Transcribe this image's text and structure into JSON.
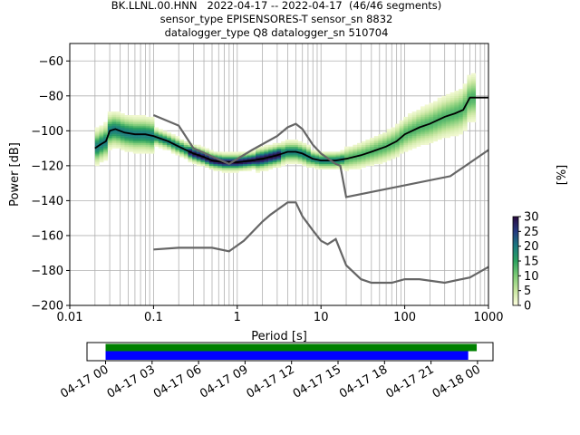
{
  "title_lines": [
    "BK.LLNL.00.HNN   2022-04-17 -- 2022-04-17  (46/46 segments)",
    "sensor_type EPISENSORES-T sensor_sn 8832",
    "datalogger_type Q8 datalogger_sn 510704"
  ],
  "chart_data": [
    {
      "type": "heatmap",
      "title": "BK.LLNL.00.HNN   2022-04-17 -- 2022-04-17  (46/46 segments)",
      "xlabel": "Period [s]",
      "ylabel": "Power [dB]",
      "xscale": "log",
      "xlim": [
        0.01,
        1000
      ],
      "ylim": [
        -200,
        -50
      ],
      "x_ticks": [
        "0.01",
        "0.1",
        "1",
        "10",
        "100",
        "1000"
      ],
      "y_ticks": [
        "−60",
        "−80",
        "−100",
        "−120",
        "−140",
        "−160",
        "−180",
        "−200"
      ],
      "grid": true,
      "colorbar": {
        "label": "[%]",
        "min": 0,
        "max": 30,
        "ticks": [
          "0",
          "5",
          "10",
          "15",
          "20",
          "25",
          "30"
        ],
        "colors": [
          "#ffffe0",
          "#c8e6a0",
          "#7fcc77",
          "#2ca25f",
          "#1a7a80",
          "#253a80",
          "#2a0a40"
        ]
      },
      "series": [
        {
          "name": "",
          "color": "#000000",
          "points": [
            [
              0.02,
              -110
            ],
            [
              0.023,
              -108
            ],
            [
              0.027,
              -106
            ],
            [
              0.03,
              -100
            ],
            [
              0.035,
              -99
            ],
            [
              0.045,
              -101
            ],
            [
              0.06,
              -102
            ],
            [
              0.08,
              -102
            ],
            [
              0.1,
              -103
            ],
            [
              0.15,
              -106
            ],
            [
              0.2,
              -109
            ],
            [
              0.3,
              -113
            ],
            [
              0.4,
              -115
            ],
            [
              0.5,
              -117
            ],
            [
              0.7,
              -118
            ],
            [
              1,
              -118
            ],
            [
              1.5,
              -117
            ],
            [
              2,
              -116
            ],
            [
              3,
              -114
            ],
            [
              4,
              -112
            ],
            [
              5,
              -112
            ],
            [
              6,
              -113
            ],
            [
              8,
              -116
            ],
            [
              10,
              -117
            ],
            [
              15,
              -117
            ],
            [
              20,
              -116
            ],
            [
              30,
              -114
            ],
            [
              40,
              -112
            ],
            [
              60,
              -109
            ],
            [
              80,
              -106
            ],
            [
              100,
              -102
            ],
            [
              150,
              -98
            ],
            [
              200,
              -96
            ],
            [
              300,
              -92
            ],
            [
              400,
              -90
            ],
            [
              500,
              -88
            ],
            [
              600,
              -81
            ],
            [
              1000,
              -81
            ]
          ]
        },
        {
          "name": "",
          "color": "#666666",
          "points": [
            [
              0.1,
              -91
            ],
            [
              0.2,
              -97
            ],
            [
              0.3,
              -110
            ],
            [
              0.8,
              -119
            ],
            [
              1.5,
              -111
            ],
            [
              3,
              -103
            ],
            [
              4,
              -98
            ],
            [
              5,
              -96
            ],
            [
              6,
              -99
            ],
            [
              8,
              -108
            ],
            [
              10,
              -113
            ],
            [
              15,
              -119
            ],
            [
              17,
              -120
            ],
            [
              20,
              -138
            ],
            [
              350,
              -126
            ],
            [
              1000,
              -111
            ]
          ]
        },
        {
          "name": "",
          "color": "#666666",
          "points": [
            [
              0.1,
              -168
            ],
            [
              0.2,
              -167
            ],
            [
              0.5,
              -167
            ],
            [
              0.8,
              -169
            ],
            [
              1.2,
              -163
            ],
            [
              2,
              -152
            ],
            [
              2.5,
              -148
            ],
            [
              4,
              -141
            ],
            [
              5,
              -141
            ],
            [
              6,
              -149
            ],
            [
              8,
              -157
            ],
            [
              10,
              -163
            ],
            [
              12,
              -165
            ],
            [
              15,
              -162
            ],
            [
              20,
              -177
            ],
            [
              30,
              -185
            ],
            [
              40,
              -187
            ],
            [
              70,
              -187
            ],
            [
              100,
              -185
            ],
            [
              150,
              -185
            ],
            [
              300,
              -187
            ],
            [
              600,
              -184
            ],
            [
              1000,
              -178
            ]
          ]
        }
      ]
    },
    {
      "type": "bar",
      "xlabel": "",
      "x_ticks": [
        "04-17 00",
        "04-17 03",
        "04-17 06",
        "04-17 09",
        "04-17 12",
        "04-17 15",
        "04-17 18",
        "04-17 21",
        "04-18 00"
      ],
      "xlim_hours": [
        -1.2,
        25.0
      ],
      "series": [
        {
          "name": "",
          "color": "#008000",
          "start_hours": 0.0,
          "end_hours": 23.95
        },
        {
          "name": "",
          "color": "#0000ff",
          "start_hours": 0.0,
          "end_hours": 23.4
        }
      ]
    }
  ]
}
